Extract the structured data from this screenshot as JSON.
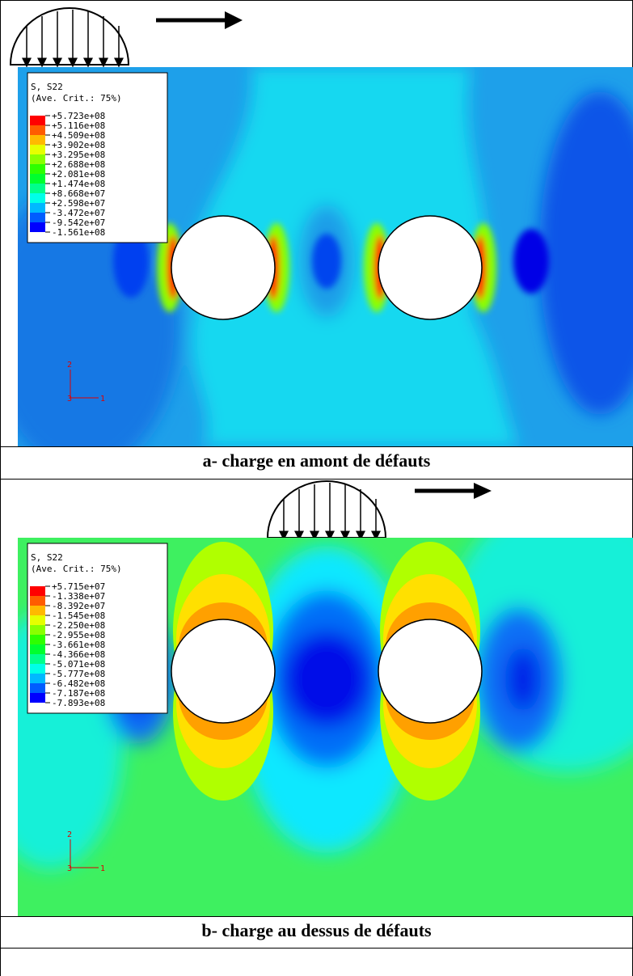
{
  "panels": [
    {
      "legend": {
        "title": "S, S22",
        "subtitle": "(Ave. Crit.: 75%)",
        "values": [
          "+5.723e+08",
          "+5.116e+08",
          "+4.509e+08",
          "+3.902e+08",
          "+3.295e+08",
          "+2.688e+08",
          "+2.081e+08",
          "+1.474e+08",
          "+8.668e+07",
          "+2.598e+07",
          "-3.472e+07",
          "-9.542e+07",
          "-1.561e+08"
        ]
      },
      "triad": {
        "v": "2",
        "z": "3",
        "h": "1"
      },
      "caption": "a- charge en amont de défauts"
    },
    {
      "legend": {
        "title": "S, S22",
        "subtitle": "(Ave. Crit.: 75%)",
        "values": [
          "+5.715e+07",
          "-1.338e+07",
          "-8.392e+07",
          "-1.545e+08",
          "-2.250e+08",
          "-2.955e+08",
          "-3.661e+08",
          "-4.366e+08",
          "-5.071e+08",
          "-5.777e+08",
          "-6.482e+08",
          "-7.187e+08",
          "-7.893e+08"
        ]
      },
      "triad": {
        "v": "2",
        "z": "3",
        "h": "1"
      },
      "caption": "b- charge au dessus de défauts"
    }
  ]
}
